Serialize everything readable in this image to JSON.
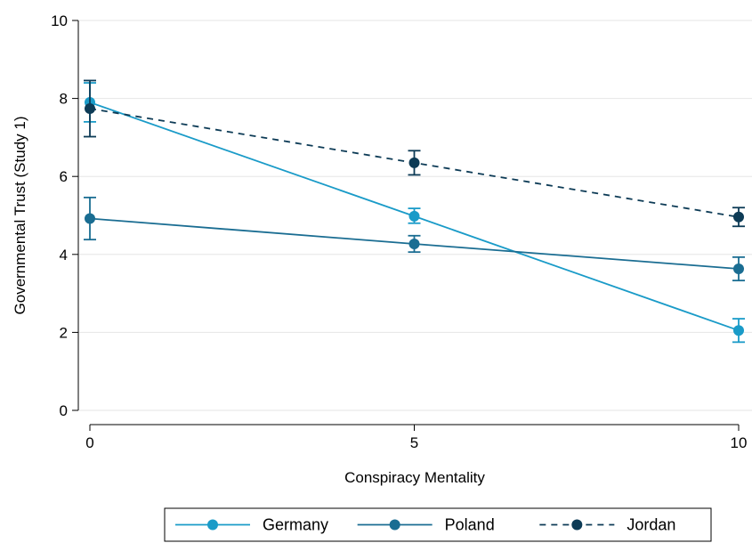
{
  "chart_data": {
    "type": "line",
    "title": "",
    "xlabel": "Conspiracy Mentality",
    "ylabel": "Governmental Trust (Study 1)",
    "xlim": [
      0,
      10
    ],
    "ylim": [
      0,
      10
    ],
    "x_ticks": [
      0,
      5,
      10
    ],
    "y_ticks": [
      0,
      2,
      4,
      6,
      8,
      10
    ],
    "grid": "horizontal",
    "legend_position": "bottom",
    "series": [
      {
        "name": "Germany",
        "color": "#1a9bc8",
        "dash": "solid",
        "points": [
          {
            "x": 0,
            "y": 7.9,
            "lo": 7.4,
            "hi": 8.4
          },
          {
            "x": 5,
            "y": 4.98,
            "lo": 4.8,
            "hi": 5.18
          },
          {
            "x": 10,
            "y": 2.05,
            "lo": 1.75,
            "hi": 2.35
          }
        ]
      },
      {
        "name": "Poland",
        "color": "#1a6d92",
        "dash": "solid",
        "points": [
          {
            "x": 0,
            "y": 4.92,
            "lo": 4.38,
            "hi": 5.46
          },
          {
            "x": 5,
            "y": 4.27,
            "lo": 4.06,
            "hi": 4.48
          },
          {
            "x": 10,
            "y": 3.63,
            "lo": 3.33,
            "hi": 3.93
          }
        ]
      },
      {
        "name": "Jordan",
        "color": "#0d3b56",
        "dash": "dashed",
        "points": [
          {
            "x": 0,
            "y": 7.74,
            "lo": 7.02,
            "hi": 8.46
          },
          {
            "x": 5,
            "y": 6.35,
            "lo": 6.04,
            "hi": 6.66
          },
          {
            "x": 10,
            "y": 4.96,
            "lo": 4.72,
            "hi": 5.2
          }
        ]
      }
    ]
  }
}
